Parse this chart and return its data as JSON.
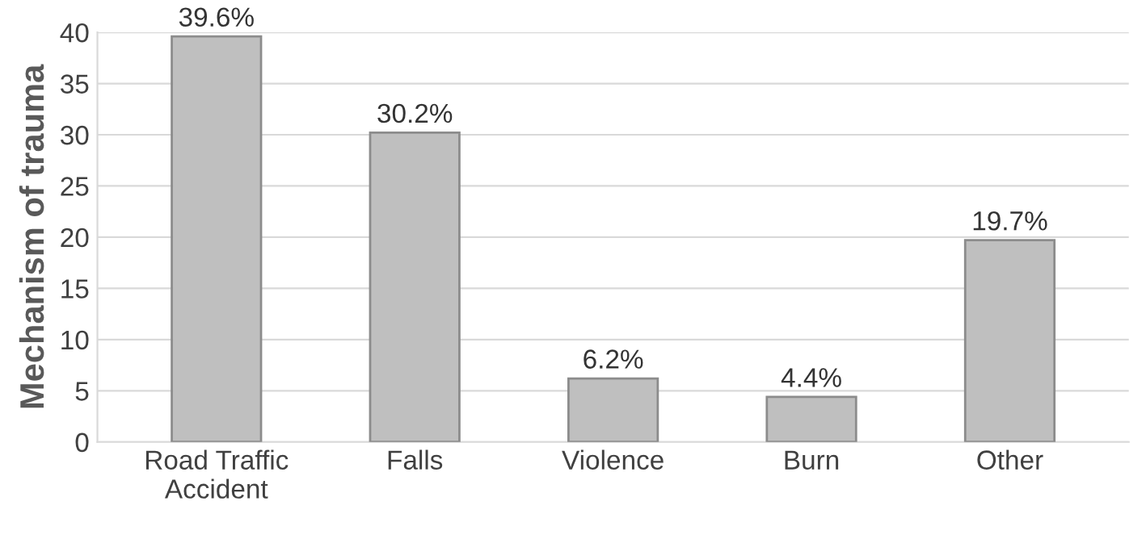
{
  "chart_data": {
    "type": "bar",
    "ylabel": "Mechanism of trauma",
    "categories": [
      "Road Traffic\nAccident",
      "Falls",
      "Violence",
      "Burn",
      "Other"
    ],
    "values": [
      39.6,
      30.2,
      6.2,
      4.4,
      19.7
    ],
    "value_labels": [
      "39.6%",
      "30.2%",
      "6.2%",
      "4.4%",
      "19.7%"
    ],
    "color": "#bfbfbf",
    "ylim": [
      0,
      40
    ],
    "yticks": [
      0,
      5,
      10,
      15,
      20,
      25,
      30,
      35,
      40
    ],
    "grid": "y"
  }
}
